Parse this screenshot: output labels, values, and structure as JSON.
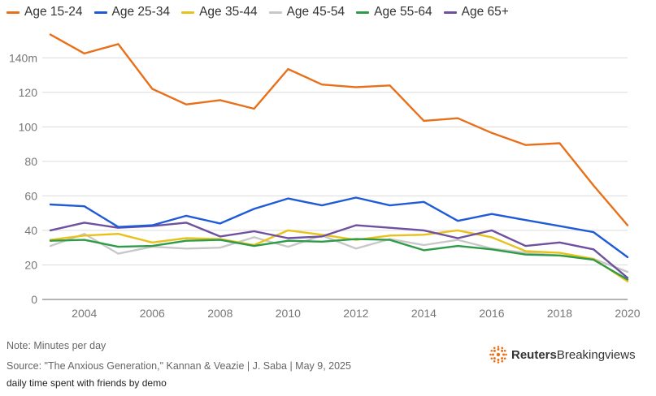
{
  "chart_data": {
    "type": "line",
    "title": "",
    "xlabel": "",
    "ylabel": "",
    "note": "Note: Minutes per day",
    "source": "Source: \"The Anxious Generation,\" Kannan & Veazie | J. Saba | May 9, 2025",
    "caption": "daily time spent with friends by demo",
    "x": [
      2003,
      2004,
      2005,
      2006,
      2007,
      2008,
      2009,
      2010,
      2011,
      2012,
      2013,
      2014,
      2015,
      2016,
      2017,
      2018,
      2019,
      2020
    ],
    "xticks": [
      2004,
      2006,
      2008,
      2010,
      2012,
      2014,
      2016,
      2018,
      2020
    ],
    "xtick_labels": [
      "2004",
      "2006",
      "2008",
      "2010",
      "2012",
      "2014",
      "2016",
      "2018",
      "2020"
    ],
    "ylim": [
      0,
      150
    ],
    "yticks": [
      0,
      20,
      40,
      60,
      80,
      100,
      120,
      140
    ],
    "ytick_labels": [
      "0",
      "20",
      "40",
      "60",
      "80",
      "100",
      "120",
      "140m"
    ],
    "grid": true,
    "legend_position": "top-left",
    "series": [
      {
        "name": "Age 15-24",
        "color": "#e8701a",
        "values": [
          153.5,
          142.5,
          148,
          122,
          113,
          115.5,
          110.5,
          133.5,
          124.5,
          123,
          124,
          103.5,
          105,
          96.5,
          89.5,
          90.5,
          66,
          43
        ]
      },
      {
        "name": "Age 25-34",
        "color": "#1f5bd6",
        "values": [
          55,
          54,
          42,
          43,
          48.5,
          44,
          52.5,
          58.5,
          54.5,
          59,
          54.5,
          56.5,
          45.5,
          49.5,
          46,
          42.5,
          39,
          24.5
        ]
      },
      {
        "name": "Age 35-44",
        "color": "#e8c21a",
        "values": [
          34.5,
          37,
          38,
          33,
          35.5,
          35,
          31.5,
          40,
          37.5,
          34.5,
          37,
          37.5,
          40,
          36,
          28,
          27,
          23.5,
          10.5
        ]
      },
      {
        "name": "Age 45-54",
        "color": "#c8c8c8",
        "values": [
          31,
          38,
          26.5,
          30.5,
          29.5,
          30,
          36,
          30.5,
          37,
          29.5,
          35,
          31.5,
          34.5,
          29.5,
          27,
          25.5,
          23.5,
          16
        ]
      },
      {
        "name": "Age 55-64",
        "color": "#2e9b48",
        "values": [
          34,
          34.5,
          30.5,
          31,
          34,
          34.5,
          31,
          34,
          33.5,
          35,
          34.5,
          28.5,
          31,
          29,
          26,
          25.5,
          23,
          11.5
        ]
      },
      {
        "name": "Age 65+",
        "color": "#6e4fa0",
        "values": [
          40,
          44.5,
          41.5,
          42.5,
          44.5,
          36.5,
          39.5,
          35.5,
          36.5,
          43,
          41.5,
          40,
          35.5,
          40,
          31,
          33,
          29,
          12.5
        ]
      }
    ]
  },
  "brand": {
    "name_bold": "Reuters",
    "name_regular": "Breakingviews",
    "color": "#e8701a"
  }
}
